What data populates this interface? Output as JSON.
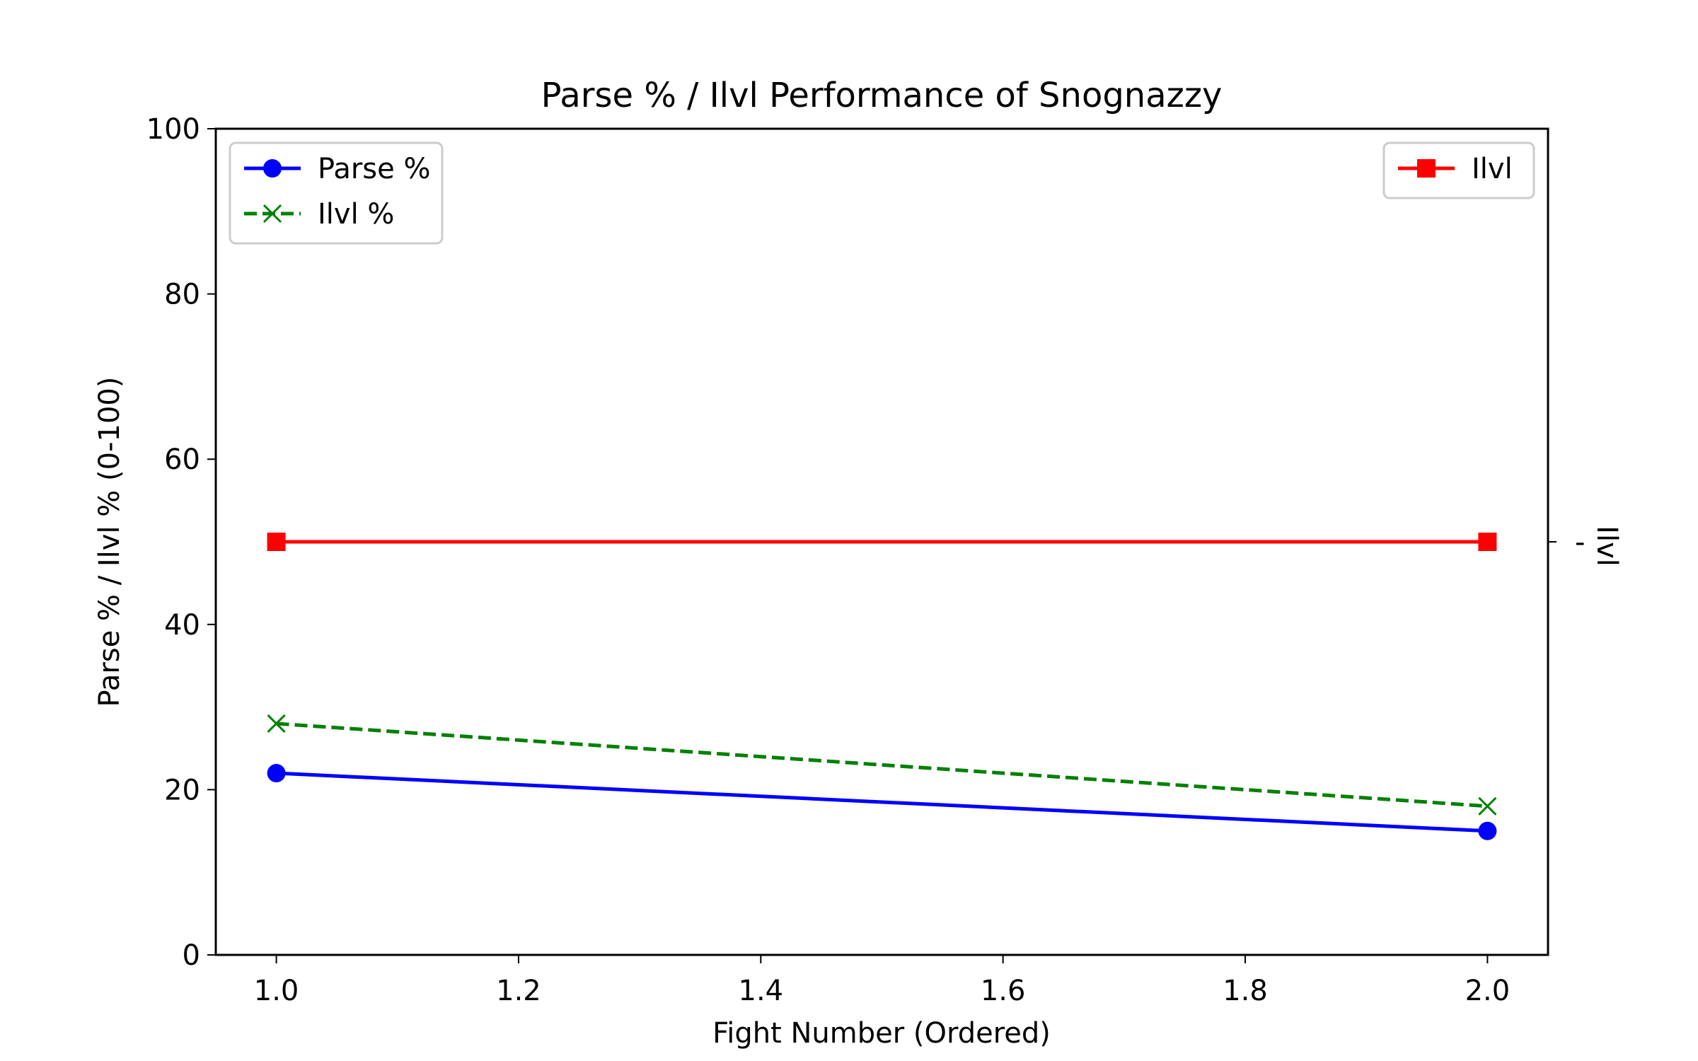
{
  "chart_data": {
    "type": "line",
    "title": "Parse % / Ilvl Performance of Snognazzy",
    "xlabel": "Fight Number (Ordered)",
    "ylabel": "Parse % / Ilvl % (0-100)",
    "ylabel_color": "#0000ff",
    "y2label": "Ilvl",
    "y2label_color": "#ff0000",
    "y2_tick_label": "-",
    "xlim": [
      0.95,
      2.05
    ],
    "ylim": [
      0,
      100
    ],
    "xticks": [
      "1.0",
      "1.2",
      "1.4",
      "1.6",
      "1.8",
      "2.0"
    ],
    "yticks": [
      "0",
      "20",
      "40",
      "60",
      "80",
      "100"
    ],
    "grid": false,
    "series": [
      {
        "name": "Parse %",
        "axis": "left",
        "color": "#0000ff",
        "marker": "circle",
        "linestyle": "solid",
        "x": [
          1.0,
          2.0
        ],
        "y": [
          22,
          15
        ]
      },
      {
        "name": "Ilvl %",
        "axis": "left",
        "color": "#008000",
        "marker": "x",
        "linestyle": "dashed",
        "x": [
          1.0,
          2.0
        ],
        "y": [
          28,
          18
        ]
      },
      {
        "name": "Ilvl",
        "axis": "right",
        "color": "#ff0000",
        "marker": "square",
        "linestyle": "solid",
        "x": [
          1.0,
          2.0
        ],
        "y": [
          50,
          50
        ]
      }
    ],
    "legends": [
      {
        "placement": "upper-left",
        "entries": [
          "Parse %",
          "Ilvl %"
        ]
      },
      {
        "placement": "upper-right",
        "entries": [
          "Ilvl"
        ]
      }
    ]
  }
}
